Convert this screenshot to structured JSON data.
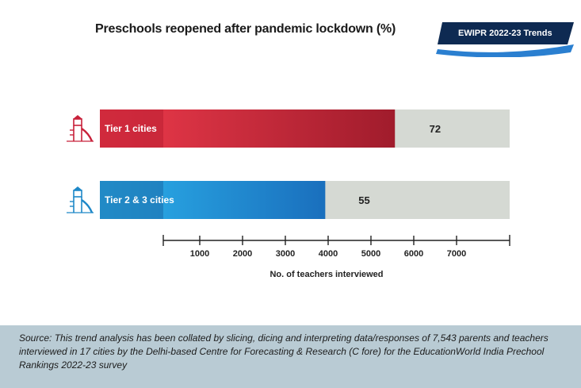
{
  "title": "Preschools reopened after pandemic lockdown (%)",
  "badge": "EWIPR 2022-23 Trends",
  "footer": "Source: This trend analysis has been collated by slicing, dicing and interpreting data/responses of 7,543 parents and teachers interviewed in 17 cities by the Delhi-based Centre for Forecasting & Research (C fore) for the EducationWorld India Prechool Rankings 2022-23 survey",
  "colors": {
    "tier1": "#c8213a",
    "tier23": "#1e88c8",
    "track": "#d5d9d3",
    "badge_blue": "#1f5fa8"
  },
  "icons": [
    "playground-slide-icon",
    "playground-slide-icon"
  ],
  "chart_data": {
    "type": "bar",
    "orientation": "horizontal",
    "title": "Preschools reopened after pandemic lockdown (%)",
    "categories": [
      "Tier 1 cities",
      "Tier 2 & 3 cities"
    ],
    "values": [
      72,
      55
    ],
    "value_labels": [
      "72",
      "55"
    ],
    "xlabel": "No. of teachers interviewed",
    "x_ticks": [
      "1000",
      "2000",
      "3000",
      "4000",
      "5000",
      "6000",
      "7000"
    ],
    "grid": false
  }
}
